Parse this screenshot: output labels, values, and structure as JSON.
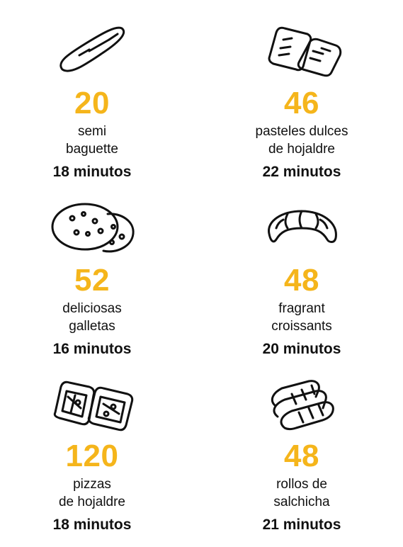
{
  "accent_color": "#F5B51B",
  "items": [
    {
      "icon": "baguette-icon",
      "count": "20",
      "line1": "semi",
      "line2": "baguette",
      "time": "18 minutos"
    },
    {
      "icon": "puff-pastry-icon",
      "count": "46",
      "line1": "pasteles dulces",
      "line2": "de hojaldre",
      "time": "22 minutos"
    },
    {
      "icon": "cookies-icon",
      "count": "52",
      "line1": "deliciosas",
      "line2": "galletas",
      "time": "16 minutos"
    },
    {
      "icon": "croissant-icon",
      "count": "48",
      "line1": "fragrant",
      "line2": "croissants",
      "time": "20 minutos"
    },
    {
      "icon": "puff-pizza-icon",
      "count": "120",
      "line1": "pizzas",
      "line2": "de hojaldre",
      "time": "18 minutos"
    },
    {
      "icon": "sausage-roll-icon",
      "count": "48",
      "line1": "rollos de",
      "line2": "salchicha",
      "time": "21 minutos"
    }
  ]
}
